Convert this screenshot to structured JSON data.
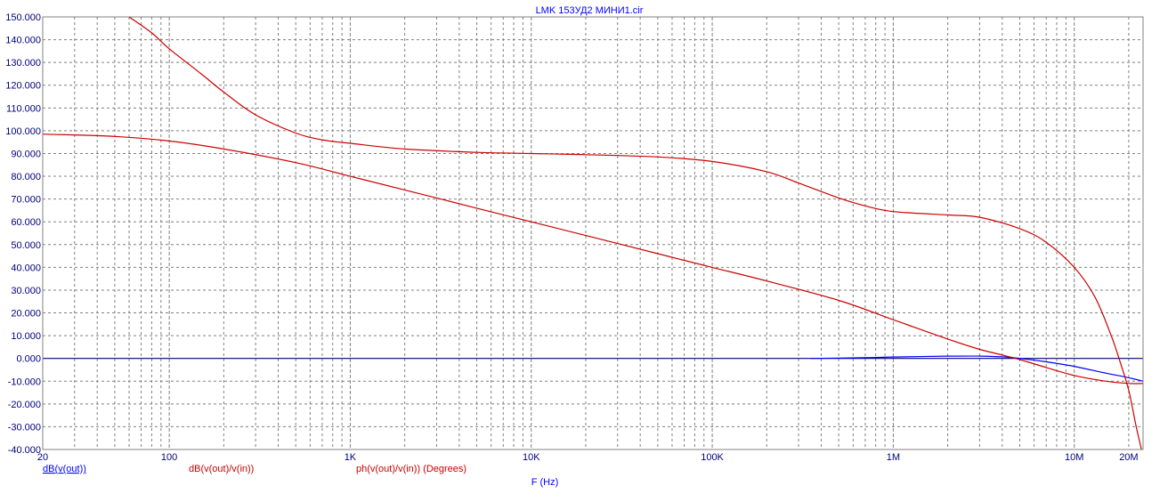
{
  "chart_data": {
    "type": "line",
    "title": "LMK 153УД2 МИНИ1.cir",
    "xlabel": "F (Hz)",
    "x_scale": "log",
    "xlim": [
      20,
      24000000
    ],
    "ylim": [
      -40,
      150
    ],
    "grid": true,
    "y_ticks": [
      150,
      140,
      130,
      120,
      110,
      100,
      90,
      80,
      70,
      60,
      50,
      40,
      30,
      20,
      10,
      0,
      -10,
      -20,
      -30,
      -40
    ],
    "y_tick_labels": [
      "150.000",
      "140.000",
      "130.000",
      "120.000",
      "110.000",
      "100.000",
      "90.000",
      "80.000",
      "70.000",
      "60.000",
      "50.000",
      "40.000",
      "30.000",
      "20.000",
      "10.000",
      "0.000",
      "-10.000",
      "-20.000",
      "-30.000",
      "-40.000"
    ],
    "x_ticks": [
      20,
      100,
      1000,
      10000,
      100000,
      1000000,
      10000000,
      20000000
    ],
    "x_tick_labels": [
      "20",
      "100",
      "1K",
      "10K",
      "100K",
      "1M",
      "10M",
      "20M"
    ],
    "colors": {
      "axis": "#000080",
      "grid": "#808080",
      "labels": "#0000ff",
      "blue_series": "#0000ff",
      "red_series": "#cc0000",
      "zero_line": "#000080"
    },
    "series": [
      {
        "name": "dB(v(out))",
        "color": "#0000ff",
        "x": [
          350000,
          700000,
          1000000,
          2000000,
          3000000,
          4000000,
          5000000,
          7000000,
          10000000,
          15000000,
          20000000,
          24000000
        ],
        "y": [
          0,
          0.3,
          0.6,
          1.0,
          1.0,
          0.7,
          0,
          -1.5,
          -3.5,
          -6.5,
          -8.5,
          -10
        ]
      },
      {
        "name": "dB(v(out)/v(in))",
        "color": "#cc0000",
        "x": [
          20,
          50,
          100,
          200,
          500,
          1000,
          2000,
          5000,
          10000,
          20000,
          50000,
          100000,
          200000,
          500000,
          1000000,
          2000000,
          3000000,
          4000000,
          5000000,
          7000000,
          10000000,
          15000000,
          20000000,
          24000000
        ],
        "y": [
          98.5,
          97.5,
          95.5,
          92,
          86,
          80,
          74,
          66,
          60,
          54,
          46,
          40,
          34,
          25.5,
          17,
          8.5,
          4,
          1.5,
          -0.5,
          -4,
          -7.5,
          -10,
          -11,
          -11
        ]
      },
      {
        "name": "ph(v(out)/v(in)) (Degrees)",
        "color": "#cc0000",
        "x": [
          60,
          80,
          100,
          150,
          200,
          300,
          500,
          700,
          1000,
          2000,
          5000,
          10000,
          20000,
          50000,
          100000,
          200000,
          300000,
          500000,
          700000,
          1000000,
          2000000,
          3000000,
          5000000,
          7000000,
          10000000,
          13000000,
          16000000,
          18000000,
          20000000,
          22000000,
          24000000
        ],
        "y": [
          150,
          143,
          136,
          125,
          117,
          107,
          99,
          96,
          94.5,
          92,
          90.5,
          90,
          89.5,
          88.5,
          86.5,
          82,
          77,
          70.5,
          67,
          64.5,
          63,
          62,
          57,
          51,
          40,
          27,
          10,
          -2,
          -14,
          -30,
          -43
        ]
      }
    ]
  }
}
